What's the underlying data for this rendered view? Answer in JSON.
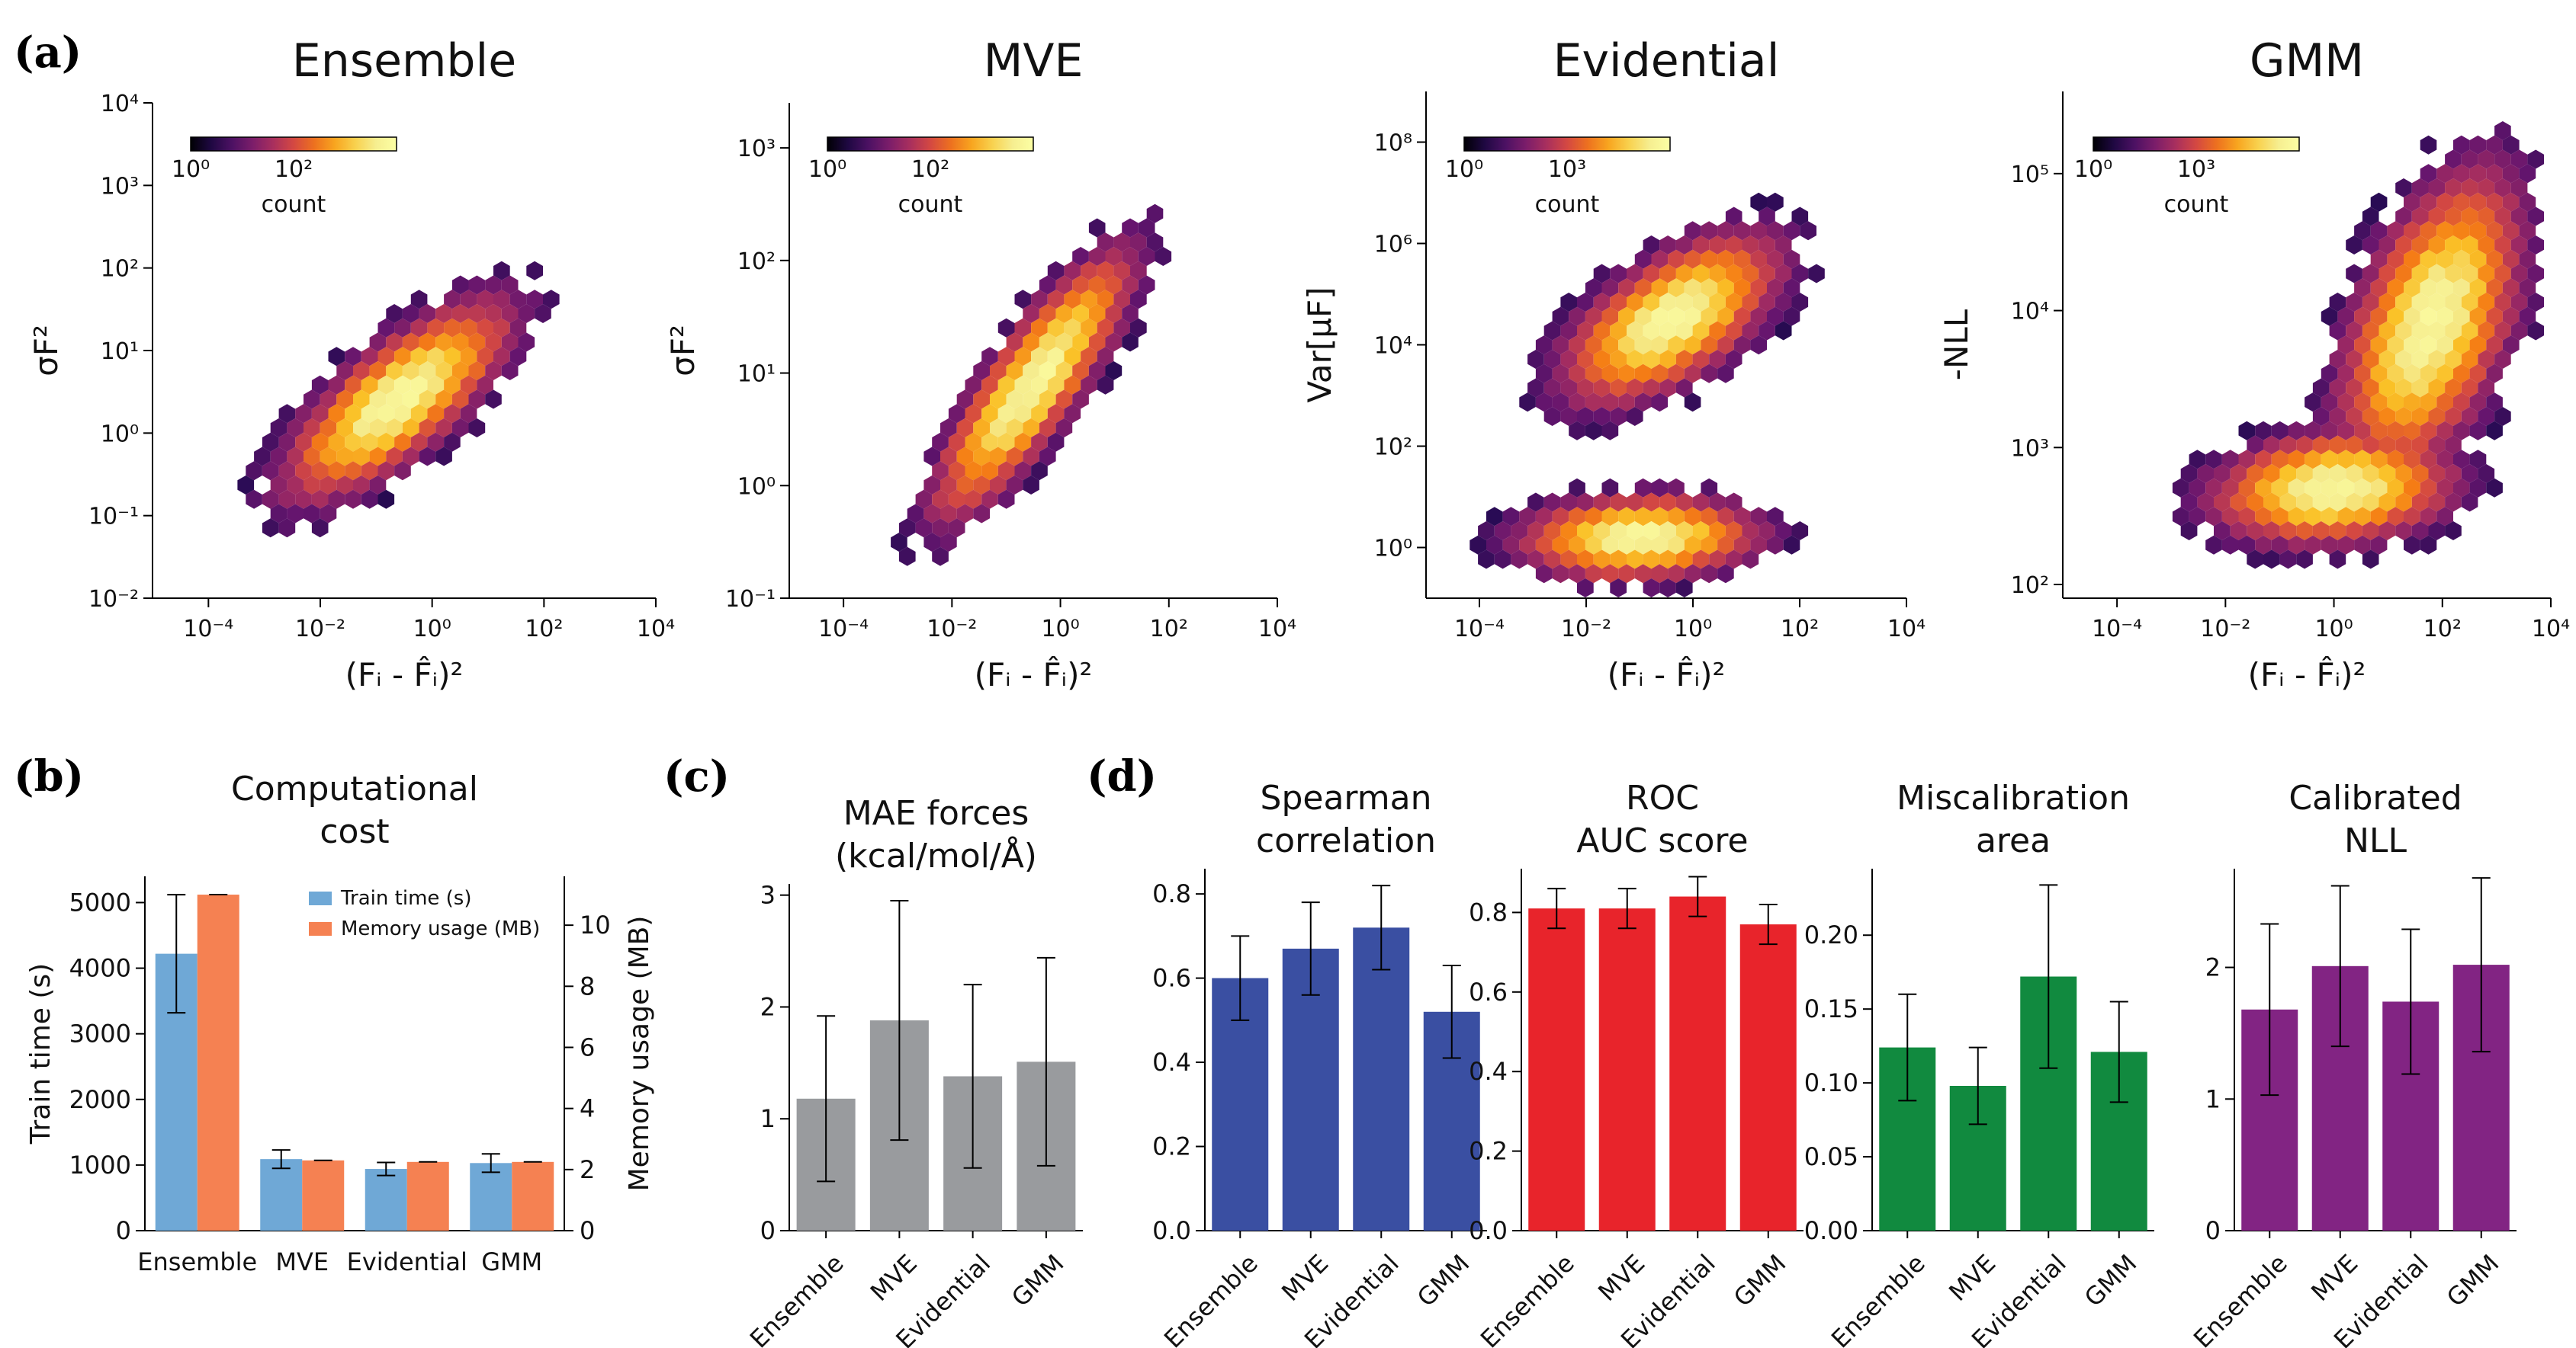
{
  "panel_labels": [
    "(a)",
    "(b)",
    "(c)",
    "(d)"
  ],
  "chart_data": [
    {
      "type": "heatmap",
      "kind": "hexbin",
      "title": "Ensemble",
      "xlabel": "(Fᵢ - F̂ᵢ)²",
      "ylabel": "σF²",
      "xscale": "log",
      "yscale": "log",
      "xlim_exp": [
        -5,
        4
      ],
      "ylim_exp": [
        -2,
        4
      ],
      "xticks": [
        "10⁻⁴",
        "10⁻²",
        "10⁰",
        "10²",
        "10⁴"
      ],
      "yticks": [
        "10⁻²",
        "10⁻¹",
        "10⁰",
        "10¹",
        "10²",
        "10³",
        "10⁴"
      ],
      "colorbar": {
        "label": "count",
        "ticks": [
          "10⁰",
          "10²"
        ]
      },
      "clusters": [
        {
          "cx": -0.6,
          "cy": 0.4,
          "sx": 1.1,
          "sy": 0.65,
          "rho": 0.75
        }
      ]
    },
    {
      "type": "heatmap",
      "kind": "hexbin",
      "title": "MVE",
      "xlabel": "(Fᵢ - F̂ᵢ)²",
      "ylabel": "σF²",
      "xscale": "log",
      "yscale": "log",
      "xlim_exp": [
        -5,
        4
      ],
      "ylim_exp": [
        -1,
        3.4
      ],
      "xticks": [
        "10⁻⁴",
        "10⁻²",
        "10⁰",
        "10²",
        "10⁴"
      ],
      "yticks": [
        "10⁻¹",
        "10⁰",
        "10¹",
        "10²",
        "10³"
      ],
      "colorbar": {
        "label": "count",
        "ticks": [
          "10⁰",
          "10²"
        ]
      },
      "clusters": [
        {
          "cx": -0.5,
          "cy": 0.9,
          "sx": 1.0,
          "sy": 0.65,
          "rho": 0.85
        }
      ]
    },
    {
      "type": "heatmap",
      "kind": "hexbin",
      "title": "Evidential",
      "xlabel": "(Fᵢ - F̂ᵢ)²",
      "ylabel": "Var[μF]",
      "xscale": "log",
      "yscale": "log",
      "xlim_exp": [
        -5,
        4
      ],
      "ylim_exp": [
        -1,
        9
      ],
      "xticks": [
        "10⁻⁴",
        "10⁻²",
        "10⁰",
        "10²",
        "10⁴"
      ],
      "yticks": [
        "10⁰",
        "10²",
        "10⁴",
        "10⁶",
        "10⁸"
      ],
      "colorbar": {
        "label": "count",
        "ticks": [
          "10⁰",
          "10³"
        ]
      },
      "clusters": [
        {
          "cx": -0.4,
          "cy": 4.5,
          "sx": 1.1,
          "sy": 0.9,
          "rho": 0.6
        },
        {
          "cx": -1.0,
          "cy": 0.2,
          "sx": 1.2,
          "sy": 0.45,
          "rho": 0.1
        }
      ]
    },
    {
      "type": "heatmap",
      "kind": "hexbin",
      "title": "GMM",
      "xlabel": "(Fᵢ - F̂ᵢ)²",
      "ylabel": "-NLL",
      "xscale": "log",
      "yscale": "log",
      "xlim_exp": [
        -5,
        4
      ],
      "ylim_exp": [
        1.9,
        5.6
      ],
      "xticks": [
        "10⁻⁴",
        "10⁻²",
        "10⁰",
        "10²",
        "10⁴"
      ],
      "yticks": [
        "10²",
        "10³",
        "10⁴",
        "10⁵"
      ],
      "colorbar": {
        "label": "count",
        "ticks": [
          "10⁰",
          "10³"
        ]
      },
      "clusters": [
        {
          "cx": 0.0,
          "cy": 2.7,
          "sx": 1.2,
          "sy": 0.22,
          "rho": 0.15
        },
        {
          "cx": 1.8,
          "cy": 3.9,
          "sx": 0.9,
          "sy": 0.6,
          "rho": 0.5
        }
      ]
    },
    {
      "type": "bar",
      "title": "Computational cost",
      "categories": [
        "Ensemble",
        "MVE",
        "Evidential",
        "GMM"
      ],
      "series": [
        {
          "name": "Train time (s)",
          "axis": "left",
          "color": "#6fa8d6",
          "values": [
            4220,
            1090,
            940,
            1030
          ],
          "err": [
            900,
            140,
            100,
            140
          ]
        },
        {
          "name": "Memory usage (MB)",
          "axis": "right",
          "color": "#f58152",
          "values": [
            11.0,
            2.3,
            2.25,
            2.25
          ],
          "err": [
            0,
            0,
            0,
            0
          ]
        }
      ],
      "ylabel": "Train time (s)",
      "ylabel_right": "Memory usage (MB)",
      "ylim": [
        0,
        5400
      ],
      "ylim_right": [
        0,
        11.6
      ],
      "yticks": [
        0,
        1000,
        2000,
        3000,
        4000,
        5000
      ],
      "yticks_right": [
        0,
        2,
        4,
        6,
        8,
        10
      ],
      "legend": "top-right"
    },
    {
      "type": "bar",
      "title": "MAE forces (kcal/mol/Å)",
      "color": "#999b9e",
      "categories": [
        "Ensemble",
        "MVE",
        "Evidential",
        "GMM"
      ],
      "values": [
        1.18,
        1.88,
        1.38,
        1.51
      ],
      "err": [
        0.74,
        1.07,
        0.82,
        0.93
      ],
      "ylim": [
        0,
        3.1
      ],
      "yticks": [
        0,
        1,
        2,
        3
      ]
    },
    {
      "type": "bar",
      "title": "Spearman correlation",
      "color": "#3a4fa2",
      "categories": [
        "Ensemble",
        "MVE",
        "Evidential",
        "GMM"
      ],
      "values": [
        0.6,
        0.67,
        0.72,
        0.52
      ],
      "err": [
        0.1,
        0.11,
        0.1,
        0.11
      ],
      "ylim": [
        0,
        0.86
      ],
      "yticks": [
        "0.0",
        "0.2",
        "0.4",
        "0.6",
        "0.8"
      ],
      "ytick_values": [
        0,
        0.2,
        0.4,
        0.6,
        0.8
      ]
    },
    {
      "type": "bar",
      "title": "ROC AUC score",
      "color": "#e8242b",
      "categories": [
        "Ensemble",
        "MVE",
        "Evidential",
        "GMM"
      ],
      "values": [
        0.81,
        0.81,
        0.84,
        0.77
      ],
      "err": [
        0.05,
        0.05,
        0.05,
        0.05
      ],
      "ylim": [
        0,
        0.91
      ],
      "yticks": [
        "0.0",
        "0.2",
        "0.4",
        "0.6",
        "0.8"
      ],
      "ytick_values": [
        0,
        0.2,
        0.4,
        0.6,
        0.8
      ]
    },
    {
      "type": "bar",
      "title": "Miscalibration area",
      "color": "#118a3f",
      "categories": [
        "Ensemble",
        "MVE",
        "Evidential",
        "GMM"
      ],
      "values": [
        0.124,
        0.098,
        0.172,
        0.121
      ],
      "err": [
        0.036,
        0.026,
        0.062,
        0.034
      ],
      "ylim": [
        0,
        0.245
      ],
      "yticks": [
        "0.00",
        "0.05",
        "0.10",
        "0.15",
        "0.20"
      ],
      "ytick_values": [
        0,
        0.05,
        0.1,
        0.15,
        0.2
      ]
    },
    {
      "type": "bar",
      "title": "Calibrated NLL",
      "color": "#822483",
      "categories": [
        "Ensemble",
        "MVE",
        "Evidential",
        "GMM"
      ],
      "values": [
        1.68,
        2.01,
        1.74,
        2.02
      ],
      "err": [
        0.65,
        0.61,
        0.55,
        0.66
      ],
      "ylim": [
        0,
        2.75
      ],
      "yticks": [
        "0",
        "1",
        "2"
      ],
      "ytick_values": [
        0,
        1,
        2
      ]
    }
  ]
}
